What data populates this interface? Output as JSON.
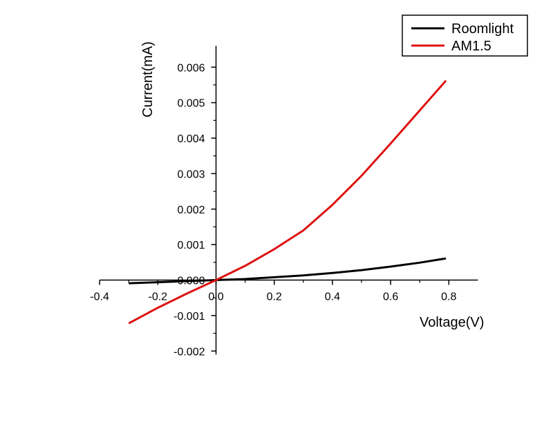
{
  "chart_data": {
    "type": "line",
    "xlabel": "Voltage(V)",
    "ylabel": "Current(mA)",
    "xlim": [
      -0.4,
      0.9
    ],
    "ylim": [
      -0.0021,
      0.0066
    ],
    "x_ticks": [
      -0.4,
      -0.2,
      0.0,
      0.2,
      0.4,
      0.6,
      0.8
    ],
    "x_tick_labels": [
      "-0.4",
      "-0.2",
      "0.0",
      "0.2",
      "0.4",
      "0.6",
      "0.8"
    ],
    "y_ticks": [
      -0.002,
      -0.001,
      0.0,
      0.001,
      0.002,
      0.003,
      0.004,
      0.005,
      0.006
    ],
    "y_tick_labels": [
      "-0.002",
      "-0.001",
      "0.000",
      "0.001",
      "0.002",
      "0.003",
      "0.004",
      "0.005",
      "0.006"
    ],
    "grid": false,
    "legend_position": "top-right",
    "series": [
      {
        "name": "Roomlight",
        "color": "#000000",
        "x": [
          -0.3,
          -0.2,
          -0.1,
          0.0,
          0.1,
          0.2,
          0.3,
          0.4,
          0.5,
          0.6,
          0.7,
          0.79
        ],
        "y": [
          -9e-05,
          -6e-05,
          -3e-05,
          0.0,
          3e-05,
          8e-05,
          0.00013,
          0.0002,
          0.00028,
          0.00038,
          0.00049,
          0.00061
        ]
      },
      {
        "name": "AM1.5",
        "color": "#dd1111",
        "x": [
          -0.3,
          -0.2,
          -0.1,
          0.0,
          0.1,
          0.2,
          0.3,
          0.4,
          0.5,
          0.6,
          0.7,
          0.79
        ],
        "y": [
          -0.00122,
          -0.00078,
          -0.00038,
          0.0,
          0.0004,
          0.00087,
          0.0014,
          0.00212,
          0.00294,
          0.00385,
          0.00478,
          0.00562
        ]
      }
    ]
  }
}
